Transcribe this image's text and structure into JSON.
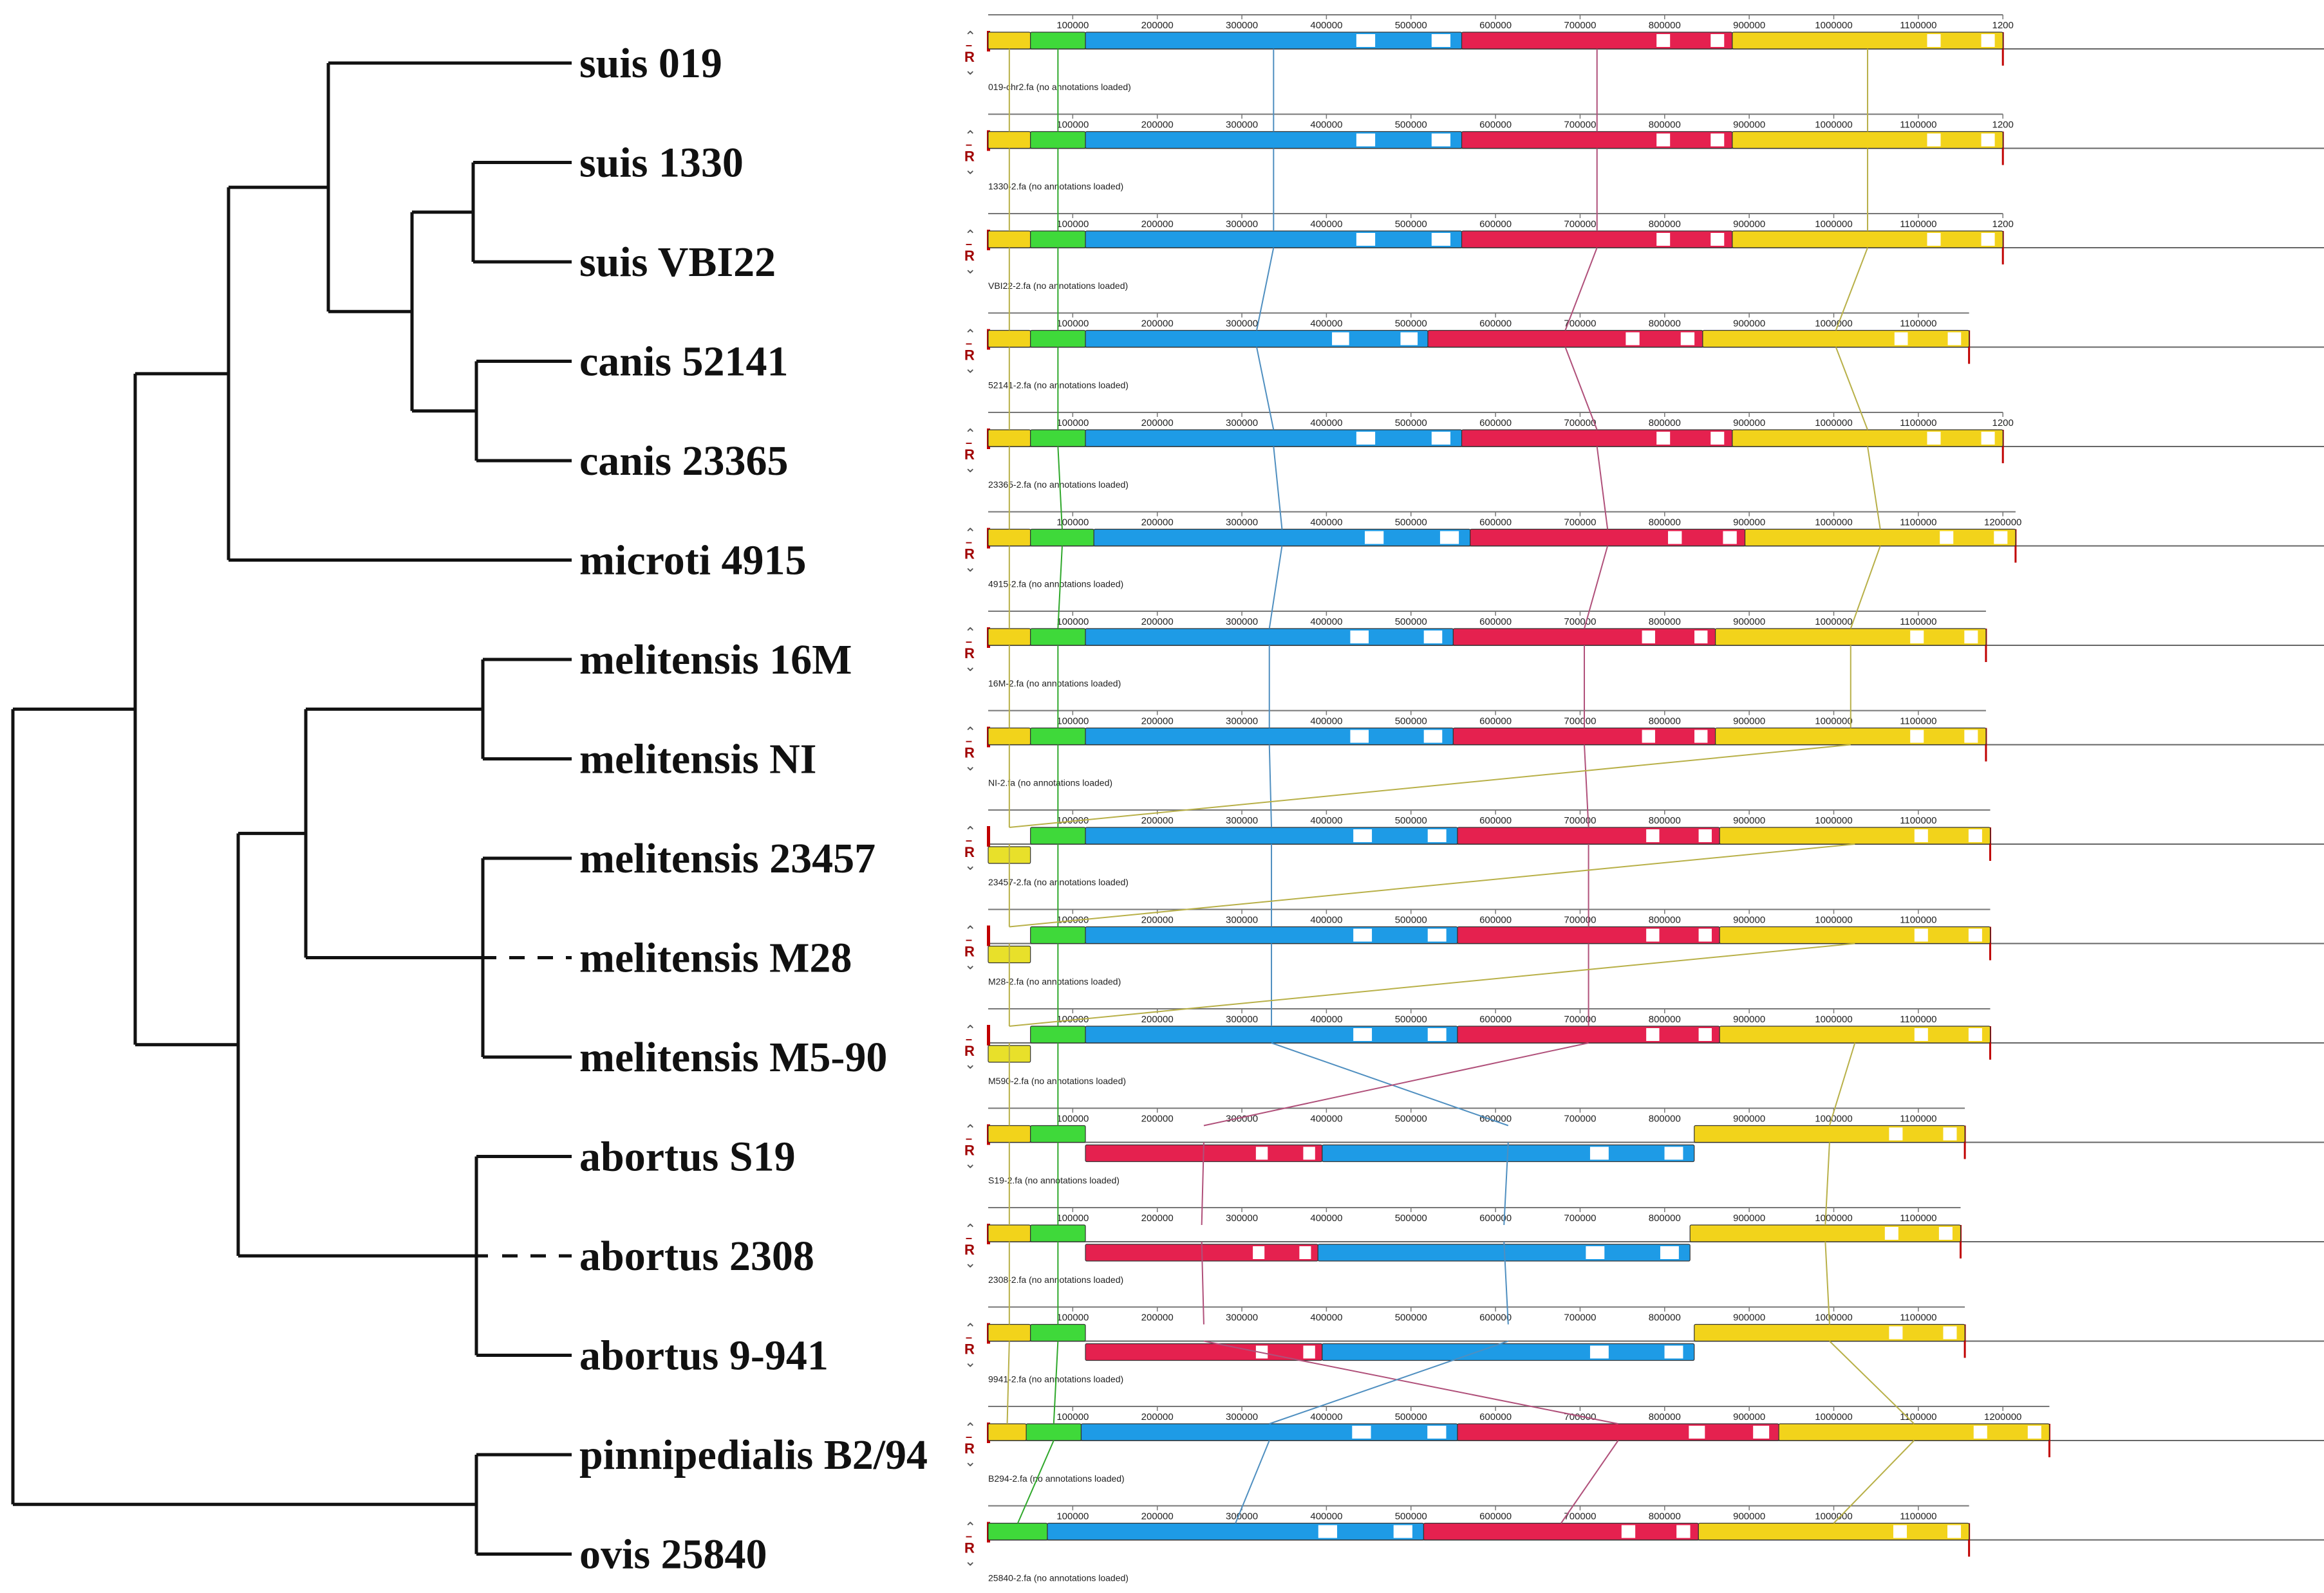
{
  "figure": {
    "tree": {
      "leaves": [
        "suis 019",
        "suis 1330",
        "suis VBI22",
        "canis 52141",
        "canis 23365",
        "microti 4915",
        "melitensis 16M",
        "melitensis NI",
        "melitensis 23457",
        "melitensis M28",
        "melitensis M5-90",
        "abortus S19",
        "abortus 2308",
        "abortus 9-941",
        "pinnipedialis B2/94",
        "ovis 25840"
      ],
      "dashed_branch_leaves": [
        "melitensis M28",
        "abortus 2308"
      ],
      "branch_color": "#111111"
    },
    "alignment": {
      "block_colors": {
        "yellow": "#f2d31b",
        "green": "#3fd93a",
        "blue": "#1e9be6",
        "red": "#e5214f",
        "yellow_small": "#e8e02a"
      },
      "control_labels": {
        "reverse": "R",
        "up": "⌃",
        "down": "⌄",
        "minus": "–"
      },
      "tracks": [
        {
          "name": "suis 019",
          "caption": "019-chr2.fa (no annotations loaded)",
          "ticks": [
            "100000",
            "200000",
            "300000",
            "400000",
            "500000",
            "600000",
            "700000",
            "800000",
            "900000",
            "1000000",
            "1100000",
            "1200"
          ],
          "blocks": [
            {
              "c": "yellow",
              "s": 0,
              "e": 50000,
              "pos": "up"
            },
            {
              "c": "green",
              "s": 50000,
              "e": 115000,
              "pos": "up"
            },
            {
              "c": "blue",
              "s": 115000,
              "e": 560000,
              "pos": "up"
            },
            {
              "c": "red",
              "s": 560000,
              "e": 880000,
              "pos": "up"
            },
            {
              "c": "yellow",
              "s": 880000,
              "e": 1200000,
              "pos": "up"
            }
          ]
        },
        {
          "name": "suis 1330",
          "caption": "1330-2.fa (no annotations loaded)",
          "ticks": [
            "100000",
            "200000",
            "300000",
            "400000",
            "500000",
            "600000",
            "700000",
            "800000",
            "900000",
            "1000000",
            "1100000",
            "1200"
          ],
          "blocks": [
            {
              "c": "yellow",
              "s": 0,
              "e": 50000,
              "pos": "up"
            },
            {
              "c": "green",
              "s": 50000,
              "e": 115000,
              "pos": "up"
            },
            {
              "c": "blue",
              "s": 115000,
              "e": 560000,
              "pos": "up"
            },
            {
              "c": "red",
              "s": 560000,
              "e": 880000,
              "pos": "up"
            },
            {
              "c": "yellow",
              "s": 880000,
              "e": 1200000,
              "pos": "up"
            }
          ]
        },
        {
          "name": "suis VBI22",
          "caption": "VBI22-2.fa (no annotations loaded)",
          "ticks": [
            "100000",
            "200000",
            "300000",
            "400000",
            "500000",
            "600000",
            "700000",
            "800000",
            "900000",
            "1000000",
            "1100000",
            "1200"
          ],
          "blocks": [
            {
              "c": "yellow",
              "s": 0,
              "e": 50000,
              "pos": "up"
            },
            {
              "c": "green",
              "s": 50000,
              "e": 115000,
              "pos": "up"
            },
            {
              "c": "blue",
              "s": 115000,
              "e": 560000,
              "pos": "up"
            },
            {
              "c": "red",
              "s": 560000,
              "e": 880000,
              "pos": "up"
            },
            {
              "c": "yellow",
              "s": 880000,
              "e": 1200000,
              "pos": "up"
            }
          ]
        },
        {
          "name": "canis 52141",
          "caption": "52141-2.fa (no annotations loaded)",
          "ticks": [
            "100000",
            "200000",
            "300000",
            "400000",
            "500000",
            "600000",
            "700000",
            "800000",
            "900000",
            "1000000",
            "1100000"
          ],
          "blocks": [
            {
              "c": "yellow",
              "s": 0,
              "e": 50000,
              "pos": "up"
            },
            {
              "c": "green",
              "s": 50000,
              "e": 115000,
              "pos": "up"
            },
            {
              "c": "blue",
              "s": 115000,
              "e": 520000,
              "pos": "up"
            },
            {
              "c": "red",
              "s": 520000,
              "e": 845000,
              "pos": "up"
            },
            {
              "c": "yellow",
              "s": 845000,
              "e": 1160000,
              "pos": "up"
            }
          ]
        },
        {
          "name": "canis 23365",
          "caption": "23365-2.fa (no annotations loaded)",
          "ticks": [
            "100000",
            "200000",
            "300000",
            "400000",
            "500000",
            "600000",
            "700000",
            "800000",
            "900000",
            "1000000",
            "1100000",
            "1200"
          ],
          "blocks": [
            {
              "c": "yellow",
              "s": 0,
              "e": 50000,
              "pos": "up"
            },
            {
              "c": "green",
              "s": 50000,
              "e": 115000,
              "pos": "up"
            },
            {
              "c": "blue",
              "s": 115000,
              "e": 560000,
              "pos": "up"
            },
            {
              "c": "red",
              "s": 560000,
              "e": 880000,
              "pos": "up"
            },
            {
              "c": "yellow",
              "s": 880000,
              "e": 1200000,
              "pos": "up"
            }
          ]
        },
        {
          "name": "microti 4915",
          "caption": "4915-2.fa (no annotations loaded)",
          "ticks": [
            "100000",
            "200000",
            "300000",
            "400000",
            "500000",
            "600000",
            "700000",
            "800000",
            "900000",
            "1000000",
            "1100000",
            "1200000"
          ],
          "blocks": [
            {
              "c": "yellow",
              "s": 0,
              "e": 50000,
              "pos": "up"
            },
            {
              "c": "green",
              "s": 50000,
              "e": 125000,
              "pos": "up"
            },
            {
              "c": "blue",
              "s": 125000,
              "e": 570000,
              "pos": "up"
            },
            {
              "c": "red",
              "s": 570000,
              "e": 895000,
              "pos": "up"
            },
            {
              "c": "yellow",
              "s": 895000,
              "e": 1215000,
              "pos": "up"
            }
          ]
        },
        {
          "name": "melitensis 16M",
          "caption": "16M-2.fa (no annotations loaded)",
          "ticks": [
            "100000",
            "200000",
            "300000",
            "400000",
            "500000",
            "600000",
            "700000",
            "800000",
            "900000",
            "1000000",
            "1100000"
          ],
          "blocks": [
            {
              "c": "yellow",
              "s": 0,
              "e": 50000,
              "pos": "up"
            },
            {
              "c": "green",
              "s": 50000,
              "e": 115000,
              "pos": "up"
            },
            {
              "c": "blue",
              "s": 115000,
              "e": 550000,
              "pos": "up"
            },
            {
              "c": "red",
              "s": 550000,
              "e": 860000,
              "pos": "up"
            },
            {
              "c": "yellow",
              "s": 860000,
              "e": 1180000,
              "pos": "up"
            }
          ]
        },
        {
          "name": "melitensis NI",
          "caption": "NI-2.fa (no annotations loaded)",
          "ticks": [
            "100000",
            "200000",
            "300000",
            "400000",
            "500000",
            "600000",
            "700000",
            "800000",
            "900000",
            "1000000",
            "1100000"
          ],
          "blocks": [
            {
              "c": "yellow",
              "s": 0,
              "e": 50000,
              "pos": "up"
            },
            {
              "c": "green",
              "s": 50000,
              "e": 115000,
              "pos": "up"
            },
            {
              "c": "blue",
              "s": 115000,
              "e": 550000,
              "pos": "up"
            },
            {
              "c": "red",
              "s": 550000,
              "e": 860000,
              "pos": "up"
            },
            {
              "c": "yellow",
              "s": 860000,
              "e": 1180000,
              "pos": "up"
            }
          ]
        },
        {
          "name": "melitensis 23457",
          "caption": "23457-2.fa (no annotations loaded)",
          "ticks": [
            "100000",
            "200000",
            "300000",
            "400000",
            "500000",
            "600000",
            "700000",
            "800000",
            "900000",
            "1000000",
            "1100000"
          ],
          "blocks": [
            {
              "c": "yellow_small",
              "s": 0,
              "e": 50000,
              "pos": "down"
            },
            {
              "c": "green",
              "s": 50000,
              "e": 115000,
              "pos": "up"
            },
            {
              "c": "blue",
              "s": 115000,
              "e": 555000,
              "pos": "up"
            },
            {
              "c": "red",
              "s": 555000,
              "e": 865000,
              "pos": "up"
            },
            {
              "c": "yellow",
              "s": 865000,
              "e": 1185000,
              "pos": "up"
            }
          ]
        },
        {
          "name": "melitensis M28",
          "caption": "M28-2.fa (no annotations loaded)",
          "ticks": [
            "100000",
            "200000",
            "300000",
            "400000",
            "500000",
            "600000",
            "700000",
            "800000",
            "900000",
            "1000000",
            "1100000"
          ],
          "blocks": [
            {
              "c": "yellow_small",
              "s": 0,
              "e": 50000,
              "pos": "down"
            },
            {
              "c": "green",
              "s": 50000,
              "e": 115000,
              "pos": "up"
            },
            {
              "c": "blue",
              "s": 115000,
              "e": 555000,
              "pos": "up"
            },
            {
              "c": "red",
              "s": 555000,
              "e": 865000,
              "pos": "up"
            },
            {
              "c": "yellow",
              "s": 865000,
              "e": 1185000,
              "pos": "up"
            }
          ]
        },
        {
          "name": "melitensis M5-90",
          "caption": "M590-2.fa (no annotations loaded)",
          "ticks": [
            "100000",
            "200000",
            "300000",
            "400000",
            "500000",
            "600000",
            "700000",
            "800000",
            "900000",
            "1000000",
            "1100000"
          ],
          "blocks": [
            {
              "c": "yellow_small",
              "s": 0,
              "e": 50000,
              "pos": "down"
            },
            {
              "c": "green",
              "s": 50000,
              "e": 115000,
              "pos": "up"
            },
            {
              "c": "blue",
              "s": 115000,
              "e": 555000,
              "pos": "up"
            },
            {
              "c": "red",
              "s": 555000,
              "e": 865000,
              "pos": "up"
            },
            {
              "c": "yellow",
              "s": 865000,
              "e": 1185000,
              "pos": "up"
            }
          ]
        },
        {
          "name": "abortus S19",
          "caption": "S19-2.fa (no annotations loaded)",
          "ticks": [
            "100000",
            "200000",
            "300000",
            "400000",
            "500000",
            "600000",
            "700000",
            "800000",
            "900000",
            "1000000",
            "1100000"
          ],
          "blocks": [
            {
              "c": "yellow",
              "s": 0,
              "e": 50000,
              "pos": "up"
            },
            {
              "c": "green",
              "s": 50000,
              "e": 115000,
              "pos": "up"
            },
            {
              "c": "red",
              "s": 115000,
              "e": 395000,
              "pos": "down"
            },
            {
              "c": "blue",
              "s": 395000,
              "e": 835000,
              "pos": "down"
            },
            {
              "c": "yellow",
              "s": 835000,
              "e": 1155000,
              "pos": "up"
            }
          ]
        },
        {
          "name": "abortus 2308",
          "caption": "2308-2.fa (no annotations loaded)",
          "ticks": [
            "100000",
            "200000",
            "300000",
            "400000",
            "500000",
            "600000",
            "700000",
            "800000",
            "900000",
            "1000000",
            "1100000"
          ],
          "blocks": [
            {
              "c": "yellow",
              "s": 0,
              "e": 50000,
              "pos": "up"
            },
            {
              "c": "green",
              "s": 50000,
              "e": 115000,
              "pos": "up"
            },
            {
              "c": "red",
              "s": 115000,
              "e": 390000,
              "pos": "down"
            },
            {
              "c": "blue",
              "s": 390000,
              "e": 830000,
              "pos": "down"
            },
            {
              "c": "yellow",
              "s": 830000,
              "e": 1150000,
              "pos": "up"
            }
          ]
        },
        {
          "name": "abortus 9-941",
          "caption": "9941-2.fa (no annotations loaded)",
          "ticks": [
            "100000",
            "200000",
            "300000",
            "400000",
            "500000",
            "600000",
            "700000",
            "800000",
            "900000",
            "1000000",
            "1100000"
          ],
          "blocks": [
            {
              "c": "yellow",
              "s": 0,
              "e": 50000,
              "pos": "up"
            },
            {
              "c": "green",
              "s": 50000,
              "e": 115000,
              "pos": "up"
            },
            {
              "c": "red",
              "s": 115000,
              "e": 395000,
              "pos": "down"
            },
            {
              "c": "blue",
              "s": 395000,
              "e": 835000,
              "pos": "down"
            },
            {
              "c": "yellow",
              "s": 835000,
              "e": 1155000,
              "pos": "up"
            }
          ]
        },
        {
          "name": "pinnipedialis B2/94",
          "caption": "B294-2.fa (no annotations loaded)",
          "ticks": [
            "100000",
            "200000",
            "300000",
            "400000",
            "500000",
            "600000",
            "700000",
            "800000",
            "900000",
            "1000000",
            "1100000",
            "1200000"
          ],
          "blocks": [
            {
              "c": "yellow",
              "s": 0,
              "e": 45000,
              "pos": "up"
            },
            {
              "c": "green",
              "s": 45000,
              "e": 110000,
              "pos": "up"
            },
            {
              "c": "blue",
              "s": 110000,
              "e": 555000,
              "pos": "up"
            },
            {
              "c": "red",
              "s": 555000,
              "e": 935000,
              "pos": "up"
            },
            {
              "c": "yellow",
              "s": 935000,
              "e": 1255000,
              "pos": "up"
            }
          ]
        },
        {
          "name": "ovis 25840",
          "caption": "25840-2.fa (no annotations loaded)",
          "ticks": [
            "100000",
            "200000",
            "300000",
            "400000",
            "500000",
            "600000",
            "700000",
            "800000",
            "900000",
            "1000000",
            "1100000"
          ],
          "blocks": [
            {
              "c": "green",
              "s": 0,
              "e": 70000,
              "pos": "up"
            },
            {
              "c": "blue",
              "s": 70000,
              "e": 515000,
              "pos": "up"
            },
            {
              "c": "red",
              "s": 515000,
              "e": 840000,
              "pos": "up"
            },
            {
              "c": "yellow",
              "s": 840000,
              "e": 1160000,
              "pos": "up"
            }
          ]
        }
      ]
    }
  }
}
